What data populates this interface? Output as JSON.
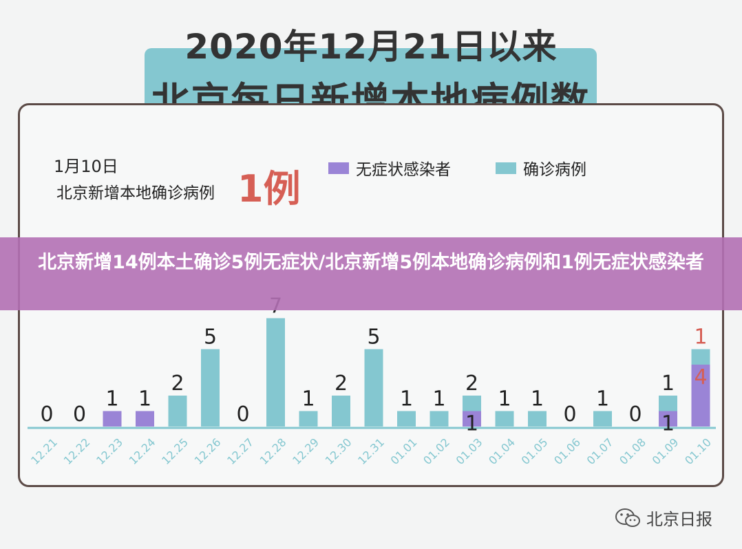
{
  "header": {
    "title_top": "2020年12月21日以来",
    "title_main": "北京每日新增本地病例数"
  },
  "summary": {
    "date": "1月10日",
    "label": "北京新增本地确诊病例",
    "value": "1例"
  },
  "legend": [
    {
      "name": "无症状感染者",
      "color": "#9a84d6"
    },
    {
      "name": "确诊病例",
      "color": "#84c7d0"
    }
  ],
  "banner": {
    "text": "北京新增14例本土确诊5例无症状/北京新增5例本地确诊病例和1例无症状感染者"
  },
  "logo": {
    "text": "北京日报",
    "icon": "wechat-icon"
  },
  "chart_data": {
    "type": "bar",
    "stacked": true,
    "categories": [
      "12.21",
      "12.22",
      "12.23",
      "12.24",
      "12.25",
      "12.26",
      "12.27",
      "12.28",
      "12.29",
      "12.30",
      "12.31",
      "01.01",
      "01.02",
      "01.03",
      "01.04",
      "01.05",
      "01.06",
      "01.07",
      "01.08",
      "01.09",
      "01.10"
    ],
    "series": [
      {
        "name": "无症状感染者",
        "color": "#9a84d6",
        "values": [
          0,
          0,
          1,
          1,
          0,
          0,
          0,
          0,
          0,
          0,
          0,
          0,
          0,
          1,
          0,
          0,
          0,
          0,
          0,
          1,
          4
        ]
      },
      {
        "name": "确诊病例",
        "color": "#84c7d0",
        "values": [
          0,
          0,
          0,
          0,
          2,
          5,
          0,
          7,
          1,
          2,
          5,
          1,
          1,
          1,
          1,
          1,
          0,
          1,
          0,
          1,
          1
        ]
      }
    ],
    "data_labels": [
      [
        {
          "text": "0"
        }
      ],
      [
        {
          "text": "0"
        }
      ],
      [
        {
          "text": "1"
        }
      ],
      [
        {
          "text": "1"
        }
      ],
      [
        {
          "text": "2"
        }
      ],
      [
        {
          "text": "5"
        }
      ],
      [
        {
          "text": "0"
        }
      ],
      [
        {
          "text": "7"
        }
      ],
      [
        {
          "text": "1"
        }
      ],
      [
        {
          "text": "2"
        }
      ],
      [
        {
          "text": "5"
        }
      ],
      [
        {
          "text": "1"
        }
      ],
      [
        {
          "text": "1"
        }
      ],
      [
        {
          "text": "2"
        },
        {
          "text": "1"
        }
      ],
      [
        {
          "text": "1"
        }
      ],
      [
        {
          "text": "1"
        }
      ],
      [
        {
          "text": "0"
        }
      ],
      [
        {
          "text": "1"
        }
      ],
      [
        {
          "text": "0"
        }
      ],
      [
        {
          "text": "1"
        },
        {
          "text": "1"
        }
      ],
      [
        {
          "text": "1",
          "color": "#d65f55"
        },
        {
          "text": "4",
          "color": "#d65f55"
        }
      ]
    ],
    "axis_color": "#84c7d0",
    "label_color": "#222222"
  }
}
